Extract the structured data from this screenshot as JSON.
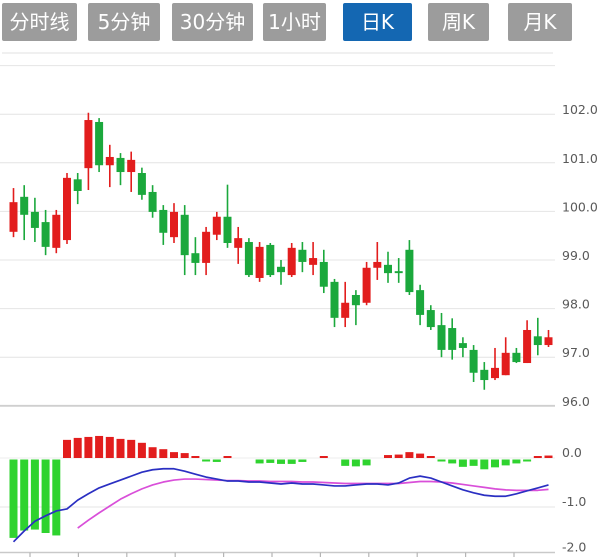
{
  "toolbar": {
    "tabs": [
      {
        "label": "分时线",
        "active": false
      },
      {
        "label": "5分钟",
        "active": false
      },
      {
        "label": "30分钟",
        "active": false
      },
      {
        "label": "1小时",
        "active": false
      },
      {
        "label": "日K",
        "active": true
      },
      {
        "label": "周K",
        "active": false
      },
      {
        "label": "月K",
        "active": false
      }
    ]
  },
  "chart_data": {
    "type": "candlestick",
    "panes": [
      "price",
      "macd-indicator"
    ],
    "grid": true,
    "price_axis": {
      "tick_labels": [
        "102.0",
        "101.0",
        "100.0",
        "99.0",
        "98.0",
        "97.0",
        "96.0"
      ],
      "tick_values": [
        102,
        101,
        100,
        99,
        98,
        97,
        96
      ],
      "range": [
        95.8,
        103.0
      ]
    },
    "macd_axis": {
      "tick_labels": [
        "0.0",
        "-1.0",
        "-2.0"
      ],
      "tick_values": [
        0,
        -1,
        -2
      ],
      "range": [
        -2.1,
        0.5
      ]
    },
    "colors": {
      "up": "#e21d1d",
      "down": "#1ba83c",
      "macd_up": "#e21d1d",
      "macd_down": "#2fd32f",
      "dif_line": "#2a2fc2",
      "dea_line": "#d94fd9",
      "grid": "#e4e4e4",
      "grid_strong": "#cfcfcf",
      "zero_line": "#ececec",
      "axis_text": "#595959",
      "tab_bg": "#9c9c9c",
      "tab_active_bg": "#1467b2",
      "tab_text": "#ffffff"
    },
    "candles_ohlc": [
      [
        99.58,
        100.48,
        99.47,
        100.19
      ],
      [
        100.3,
        100.54,
        99.41,
        99.93
      ],
      [
        99.99,
        100.28,
        99.37,
        99.66
      ],
      [
        99.78,
        100.03,
        99.1,
        99.27
      ],
      [
        99.25,
        100.03,
        99.14,
        99.93
      ],
      [
        99.41,
        100.79,
        99.33,
        100.69
      ],
      [
        100.66,
        100.79,
        100.15,
        100.42
      ],
      [
        100.89,
        102.03,
        100.44,
        101.88
      ],
      [
        101.84,
        101.92,
        100.81,
        100.95
      ],
      [
        100.95,
        101.37,
        100.5,
        101.12
      ],
      [
        101.1,
        101.2,
        100.54,
        100.81
      ],
      [
        100.81,
        101.23,
        100.4,
        101.06
      ],
      [
        100.79,
        100.9,
        100.24,
        100.34
      ],
      [
        100.4,
        100.54,
        99.87,
        99.99
      ],
      [
        100.03,
        100.13,
        99.31,
        99.56
      ],
      [
        99.47,
        100.17,
        99.35,
        99.99
      ],
      [
        99.93,
        100.13,
        98.69,
        99.1
      ],
      [
        99.14,
        99.47,
        98.69,
        98.94
      ],
      [
        98.94,
        99.68,
        98.69,
        99.58
      ],
      [
        99.52,
        99.99,
        99.41,
        99.89
      ],
      [
        99.89,
        100.55,
        99.25,
        99.35
      ],
      [
        99.25,
        99.68,
        98.92,
        99.45
      ],
      [
        99.37,
        99.45,
        98.65,
        98.69
      ],
      [
        98.63,
        99.37,
        98.55,
        99.27
      ],
      [
        99.31,
        99.35,
        98.65,
        98.69
      ],
      [
        98.86,
        99.0,
        98.49,
        98.75
      ],
      [
        98.69,
        99.35,
        98.65,
        99.25
      ],
      [
        99.21,
        99.37,
        98.75,
        98.96
      ],
      [
        98.9,
        99.37,
        98.69,
        99.04
      ],
      [
        98.96,
        99.21,
        98.32,
        98.45
      ],
      [
        98.55,
        98.61,
        97.62,
        97.81
      ],
      [
        97.81,
        98.55,
        97.62,
        98.12
      ],
      [
        98.28,
        98.38,
        97.66,
        98.07
      ],
      [
        98.12,
        98.96,
        98.07,
        98.84
      ],
      [
        98.84,
        99.37,
        98.59,
        98.96
      ],
      [
        98.9,
        99.17,
        98.53,
        98.73
      ],
      [
        98.77,
        99.04,
        98.53,
        98.73
      ],
      [
        99.21,
        99.41,
        98.28,
        98.34
      ],
      [
        98.38,
        98.49,
        97.66,
        97.87
      ],
      [
        97.97,
        98.07,
        97.56,
        97.62
      ],
      [
        97.66,
        97.91,
        97.0,
        97.15
      ],
      [
        97.6,
        97.8,
        96.95,
        97.15
      ],
      [
        97.29,
        97.41,
        97.0,
        97.19
      ],
      [
        97.15,
        97.25,
        96.49,
        96.68
      ],
      [
        96.74,
        96.9,
        96.33,
        96.53
      ],
      [
        96.57,
        97.19,
        96.53,
        96.78
      ],
      [
        96.63,
        97.41,
        96.63,
        97.09
      ],
      [
        97.09,
        97.19,
        96.88,
        96.9
      ],
      [
        96.88,
        97.76,
        96.88,
        97.56
      ],
      [
        97.43,
        97.81,
        97.04,
        97.25
      ],
      [
        97.25,
        97.56,
        97.21,
        97.41
      ]
    ],
    "macd": {
      "histogram": [
        -1.6,
        -1.45,
        -1.43,
        -1.5,
        -1.55,
        0.37,
        0.41,
        0.43,
        0.45,
        0.43,
        0.39,
        0.37,
        0.31,
        0.22,
        0.18,
        0.12,
        0.1,
        0.04,
        -0.04,
        -0.05,
        0.04,
        0.01,
        -0.01,
        -0.08,
        -0.07,
        -0.09,
        -0.09,
        -0.05,
        0.01,
        0.03,
        -0.01,
        -0.13,
        -0.14,
        -0.12,
        0.01,
        0.06,
        0.07,
        0.12,
        0.09,
        0.03,
        -0.03,
        -0.08,
        -0.15,
        -0.13,
        -0.2,
        -0.16,
        -0.12,
        -0.08,
        -0.04,
        0.04,
        0.05
      ],
      "dif": [
        -1.71,
        -1.49,
        -1.29,
        -1.18,
        -1.08,
        -1.04,
        -0.86,
        -0.73,
        -0.61,
        -0.53,
        -0.45,
        -0.37,
        -0.29,
        -0.24,
        -0.22,
        -0.22,
        -0.27,
        -0.33,
        -0.39,
        -0.43,
        -0.47,
        -0.47,
        -0.49,
        -0.49,
        -0.51,
        -0.53,
        -0.51,
        -0.53,
        -0.53,
        -0.55,
        -0.57,
        -0.57,
        -0.55,
        -0.53,
        -0.53,
        -0.55,
        -0.51,
        -0.41,
        -0.37,
        -0.41,
        -0.49,
        -0.57,
        -0.65,
        -0.71,
        -0.76,
        -0.78,
        -0.78,
        -0.73,
        -0.67,
        -0.61,
        -0.55
      ],
      "dea": [
        null,
        null,
        null,
        null,
        null,
        null,
        -1.43,
        -1.27,
        -1.12,
        -0.98,
        -0.84,
        -0.73,
        -0.63,
        -0.55,
        -0.49,
        -0.45,
        -0.43,
        -0.43,
        -0.44,
        -0.45,
        -0.46,
        -0.46,
        -0.47,
        -0.47,
        -0.48,
        -0.48,
        -0.48,
        -0.49,
        -0.49,
        -0.5,
        -0.51,
        -0.52,
        -0.52,
        -0.52,
        -0.52,
        -0.52,
        -0.52,
        -0.5,
        -0.48,
        -0.48,
        -0.49,
        -0.51,
        -0.54,
        -0.57,
        -0.6,
        -0.63,
        -0.65,
        -0.66,
        -0.66,
        -0.66,
        -0.64
      ]
    }
  }
}
